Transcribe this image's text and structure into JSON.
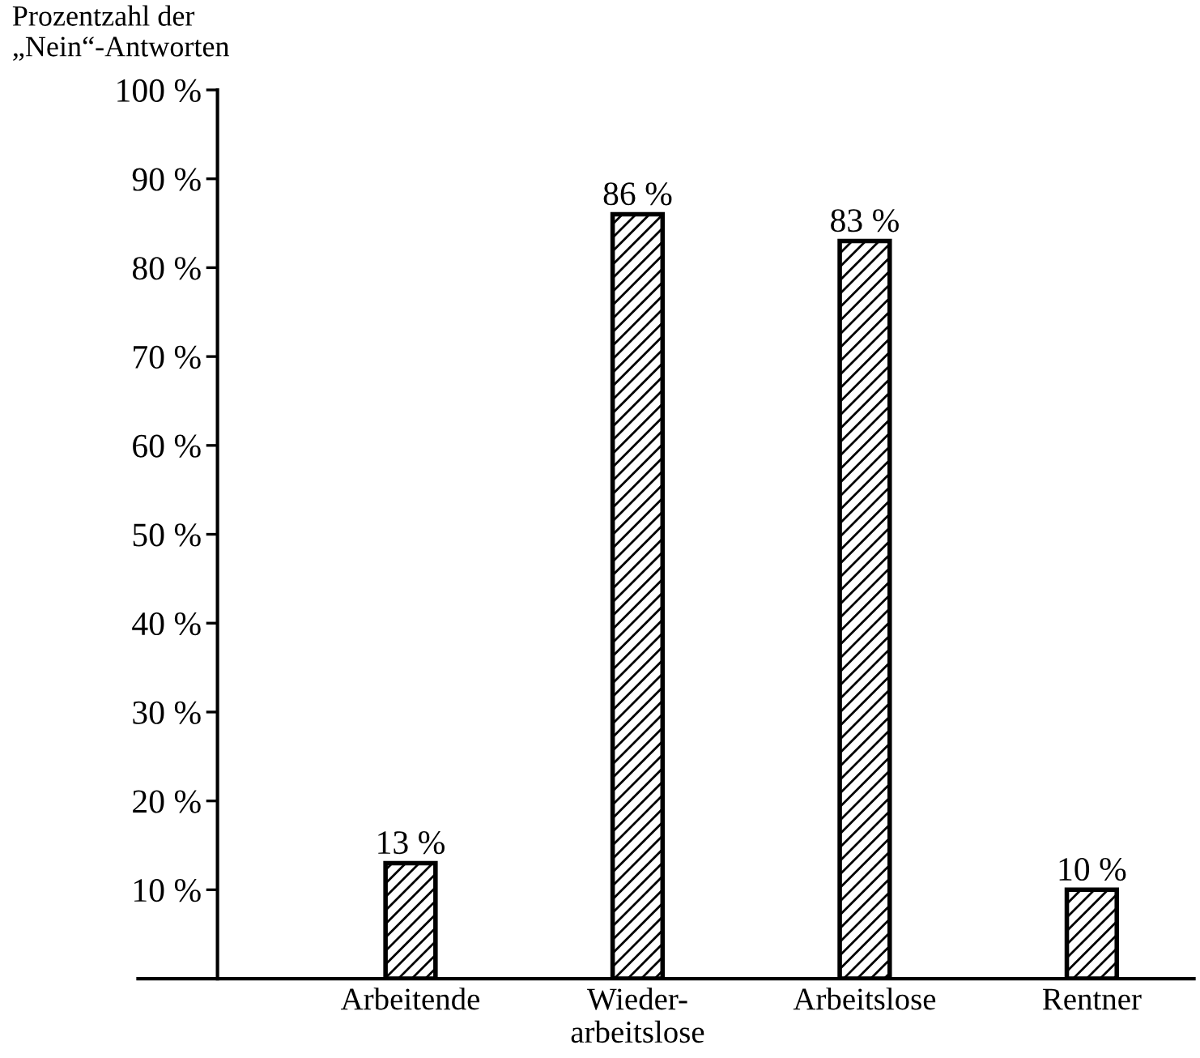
{
  "chart_data": {
    "type": "bar",
    "ylabel": "Prozentzahl der\n„Nein“-Antworten",
    "categories": [
      "Arbeitende",
      "Wieder-\narbeitslose",
      "Arbeitslose",
      "Rentner"
    ],
    "values": [
      13,
      86,
      83,
      10
    ],
    "value_labels": [
      "13 %",
      "86 %",
      "83 %",
      "10 %"
    ],
    "color": "#000000",
    "ylim": [
      0,
      100
    ],
    "yticks": [
      {
        "value": 10,
        "label": "10 %"
      },
      {
        "value": 20,
        "label": "20 %"
      },
      {
        "value": 30,
        "label": "30 %"
      },
      {
        "value": 40,
        "label": "40 %"
      },
      {
        "value": 50,
        "label": "50 %"
      },
      {
        "value": 60,
        "label": "60 %"
      },
      {
        "value": 70,
        "label": "70 %"
      },
      {
        "value": 80,
        "label": "80 %"
      },
      {
        "value": 90,
        "label": "90 %"
      },
      {
        "value": 100,
        "label": "100 %"
      }
    ],
    "grid": false
  }
}
